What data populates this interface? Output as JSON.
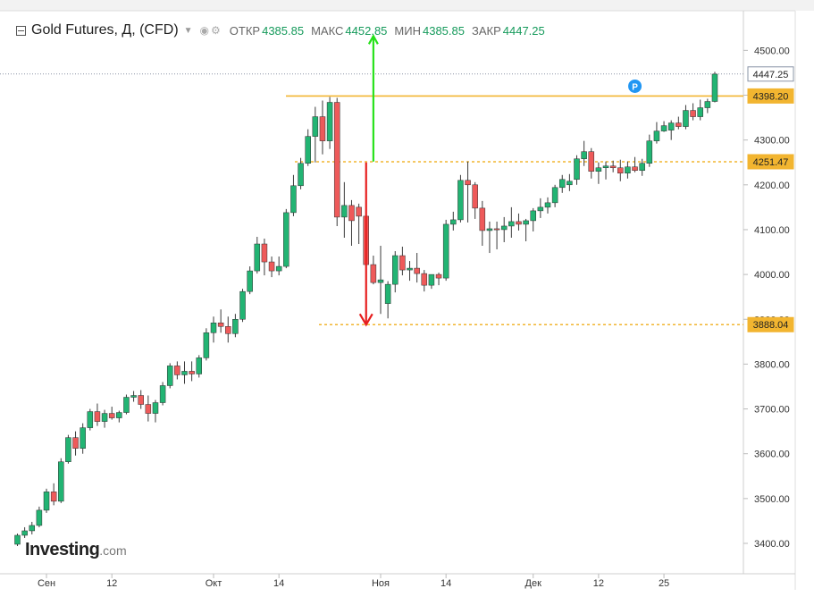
{
  "header": {
    "title": "Gold Futures, Д, (CFD)",
    "open_label": "ОТКР",
    "open_value": "4385.85",
    "high_label": "МАКС",
    "high_value": "4452.85",
    "low_label": "МИН",
    "low_value": "4385.85",
    "close_label": "ЗАКР",
    "close_value": "4447.25"
  },
  "logo": {
    "brand": "Investing",
    "suffix": ".com"
  },
  "colors": {
    "up": "#22b473",
    "down": "#ee5a5a",
    "level": "#f2b530",
    "arrow_up": "#27e11a",
    "arrow_down": "#e61e1e",
    "marker": "#2196f3"
  },
  "icons": [
    "collapse-icon",
    "dropdown-icon",
    "eye-icon",
    "gear-icon"
  ],
  "chart_data": {
    "type": "candlestick",
    "title": "Gold Futures, Д, (CFD)",
    "ylim": [
      3360,
      4540
    ],
    "y_ticks": [
      "3400.00",
      "3500.00",
      "3600.00",
      "3700.00",
      "3800.00",
      "3900.00",
      "4000.00",
      "4100.00",
      "4200.00",
      "4300.00",
      "4400.00",
      "4500.00"
    ],
    "x_ticks": [
      {
        "label": "Сен",
        "index": 4
      },
      {
        "label": "12",
        "index": 13
      },
      {
        "label": "Окт",
        "index": 27
      },
      {
        "label": "14",
        "index": 36
      },
      {
        "label": "Ноя",
        "index": 50
      },
      {
        "label": "14",
        "index": 59
      },
      {
        "label": "Дек",
        "index": 71
      },
      {
        "label": "12",
        "index": 80
      },
      {
        "label": "25",
        "index": 89
      }
    ],
    "candles": [
      [
        3398,
        3422,
        3394,
        3418
      ],
      [
        3418,
        3436,
        3412,
        3428
      ],
      [
        3428,
        3448,
        3420,
        3440
      ],
      [
        3440,
        3482,
        3436,
        3474
      ],
      [
        3474,
        3522,
        3468,
        3515
      ],
      [
        3515,
        3534,
        3485,
        3494
      ],
      [
        3494,
        3590,
        3490,
        3582
      ],
      [
        3582,
        3642,
        3578,
        3636
      ],
      [
        3636,
        3650,
        3596,
        3612
      ],
      [
        3612,
        3668,
        3600,
        3658
      ],
      [
        3658,
        3700,
        3652,
        3694
      ],
      [
        3694,
        3712,
        3662,
        3672
      ],
      [
        3672,
        3698,
        3658,
        3690
      ],
      [
        3690,
        3705,
        3676,
        3680
      ],
      [
        3680,
        3696,
        3670,
        3692
      ],
      [
        3692,
        3732,
        3688,
        3726
      ],
      [
        3726,
        3740,
        3716,
        3730
      ],
      [
        3730,
        3742,
        3700,
        3710
      ],
      [
        3710,
        3730,
        3672,
        3690
      ],
      [
        3690,
        3720,
        3670,
        3714
      ],
      [
        3714,
        3760,
        3708,
        3752
      ],
      [
        3752,
        3802,
        3746,
        3796
      ],
      [
        3796,
        3806,
        3766,
        3776
      ],
      [
        3776,
        3806,
        3756,
        3784
      ],
      [
        3784,
        3806,
        3762,
        3778
      ],
      [
        3778,
        3820,
        3770,
        3814
      ],
      [
        3814,
        3880,
        3808,
        3870
      ],
      [
        3870,
        3906,
        3848,
        3892
      ],
      [
        3892,
        3922,
        3870,
        3884
      ],
      [
        3884,
        3906,
        3848,
        3868
      ],
      [
        3868,
        3912,
        3860,
        3900
      ],
      [
        3900,
        3968,
        3894,
        3962
      ],
      [
        3962,
        4018,
        3956,
        4008
      ],
      [
        4008,
        4084,
        4002,
        4068
      ],
      [
        4068,
        4080,
        3998,
        4028
      ],
      [
        4028,
        4040,
        3994,
        4008
      ],
      [
        4008,
        4040,
        3998,
        4018
      ],
      [
        4018,
        4146,
        4014,
        4138
      ],
      [
        4138,
        4222,
        4130,
        4198
      ],
      [
        4198,
        4260,
        4190,
        4248
      ],
      [
        4248,
        4324,
        4242,
        4308
      ],
      [
        4308,
        4374,
        4250,
        4352
      ],
      [
        4352,
        4388,
        4268,
        4298
      ],
      [
        4298,
        4396,
        4280,
        4384
      ],
      [
        4384,
        4394,
        4108,
        4128
      ],
      [
        4128,
        4206,
        4082,
        4154
      ],
      [
        4154,
        4166,
        4064,
        4120
      ],
      [
        4150,
        4158,
        4068,
        4130
      ],
      [
        4130,
        4140,
        4012,
        4022
      ],
      [
        4022,
        4042,
        3978,
        3982
      ],
      [
        3982,
        4064,
        3912,
        3988
      ],
      [
        3935,
        3985,
        3902,
        3978
      ],
      [
        3978,
        4052,
        3960,
        4042
      ],
      [
        4042,
        4062,
        3998,
        4010
      ],
      [
        4010,
        4030,
        3986,
        4014
      ],
      [
        4014,
        4048,
        3982,
        4002
      ],
      [
        4002,
        4010,
        3962,
        3976
      ],
      [
        3976,
        4000,
        3968,
        4000
      ],
      [
        4000,
        4004,
        3976,
        3992
      ],
      [
        3992,
        4122,
        3986,
        4112
      ],
      [
        4112,
        4140,
        4098,
        4122
      ],
      [
        4122,
        4222,
        4116,
        4210
      ],
      [
        4210,
        4252,
        4116,
        4200
      ],
      [
        4200,
        4206,
        4124,
        4148
      ],
      [
        4148,
        4164,
        4064,
        4098
      ],
      [
        4098,
        4118,
        4048,
        4102
      ],
      [
        4102,
        4118,
        4056,
        4100
      ],
      [
        4100,
        4128,
        4072,
        4108
      ],
      [
        4108,
        4150,
        4082,
        4118
      ],
      [
        4118,
        4136,
        4098,
        4112
      ],
      [
        4112,
        4124,
        4074,
        4120
      ],
      [
        4120,
        4148,
        4096,
        4142
      ],
      [
        4142,
        4170,
        4126,
        4150
      ],
      [
        4150,
        4172,
        4136,
        4160
      ],
      [
        4160,
        4200,
        4150,
        4194
      ],
      [
        4194,
        4222,
        4182,
        4212
      ],
      [
        4200,
        4224,
        4186,
        4208
      ],
      [
        4212,
        4266,
        4200,
        4258
      ],
      [
        4258,
        4298,
        4242,
        4274
      ],
      [
        4274,
        4282,
        4214,
        4230
      ],
      [
        4230,
        4250,
        4202,
        4238
      ],
      [
        4238,
        4252,
        4212,
        4242
      ],
      [
        4242,
        4254,
        4228,
        4238
      ],
      [
        4238,
        4256,
        4208,
        4226
      ],
      [
        4226,
        4252,
        4214,
        4240
      ],
      [
        4240,
        4262,
        4228,
        4232
      ],
      [
        4232,
        4258,
        4220,
        4248
      ],
      [
        4248,
        4312,
        4240,
        4298
      ],
      [
        4298,
        4340,
        4292,
        4320
      ],
      [
        4320,
        4342,
        4318,
        4332
      ],
      [
        4322,
        4344,
        4300,
        4338
      ],
      [
        4338,
        4352,
        4324,
        4330
      ],
      [
        4330,
        4378,
        4324,
        4366
      ],
      [
        4366,
        4382,
        4344,
        4352
      ],
      [
        4352,
        4390,
        4344,
        4372
      ],
      [
        4372,
        4392,
        4360,
        4386
      ],
      [
        4386,
        4452,
        4384,
        4447
      ]
    ],
    "levels": [
      {
        "value": 4447.25,
        "label": "4447.25",
        "style": "dotted-current"
      },
      {
        "value": 4398.2,
        "label": "4398.20",
        "style": "solid"
      },
      {
        "value": 4251.47,
        "label": "4251.47",
        "style": "dashed"
      },
      {
        "value": 3888.04,
        "label": "3888.04",
        "style": "dashed"
      }
    ],
    "projections": [
      {
        "direction": "up",
        "from_index": 49,
        "from_value": 4252,
        "to_value": 4532
      },
      {
        "direction": "down",
        "from_index": 48,
        "from_value": 4250,
        "to_value": 3888
      }
    ],
    "marker": {
      "label": "P",
      "index": 85,
      "value": 4420
    }
  }
}
